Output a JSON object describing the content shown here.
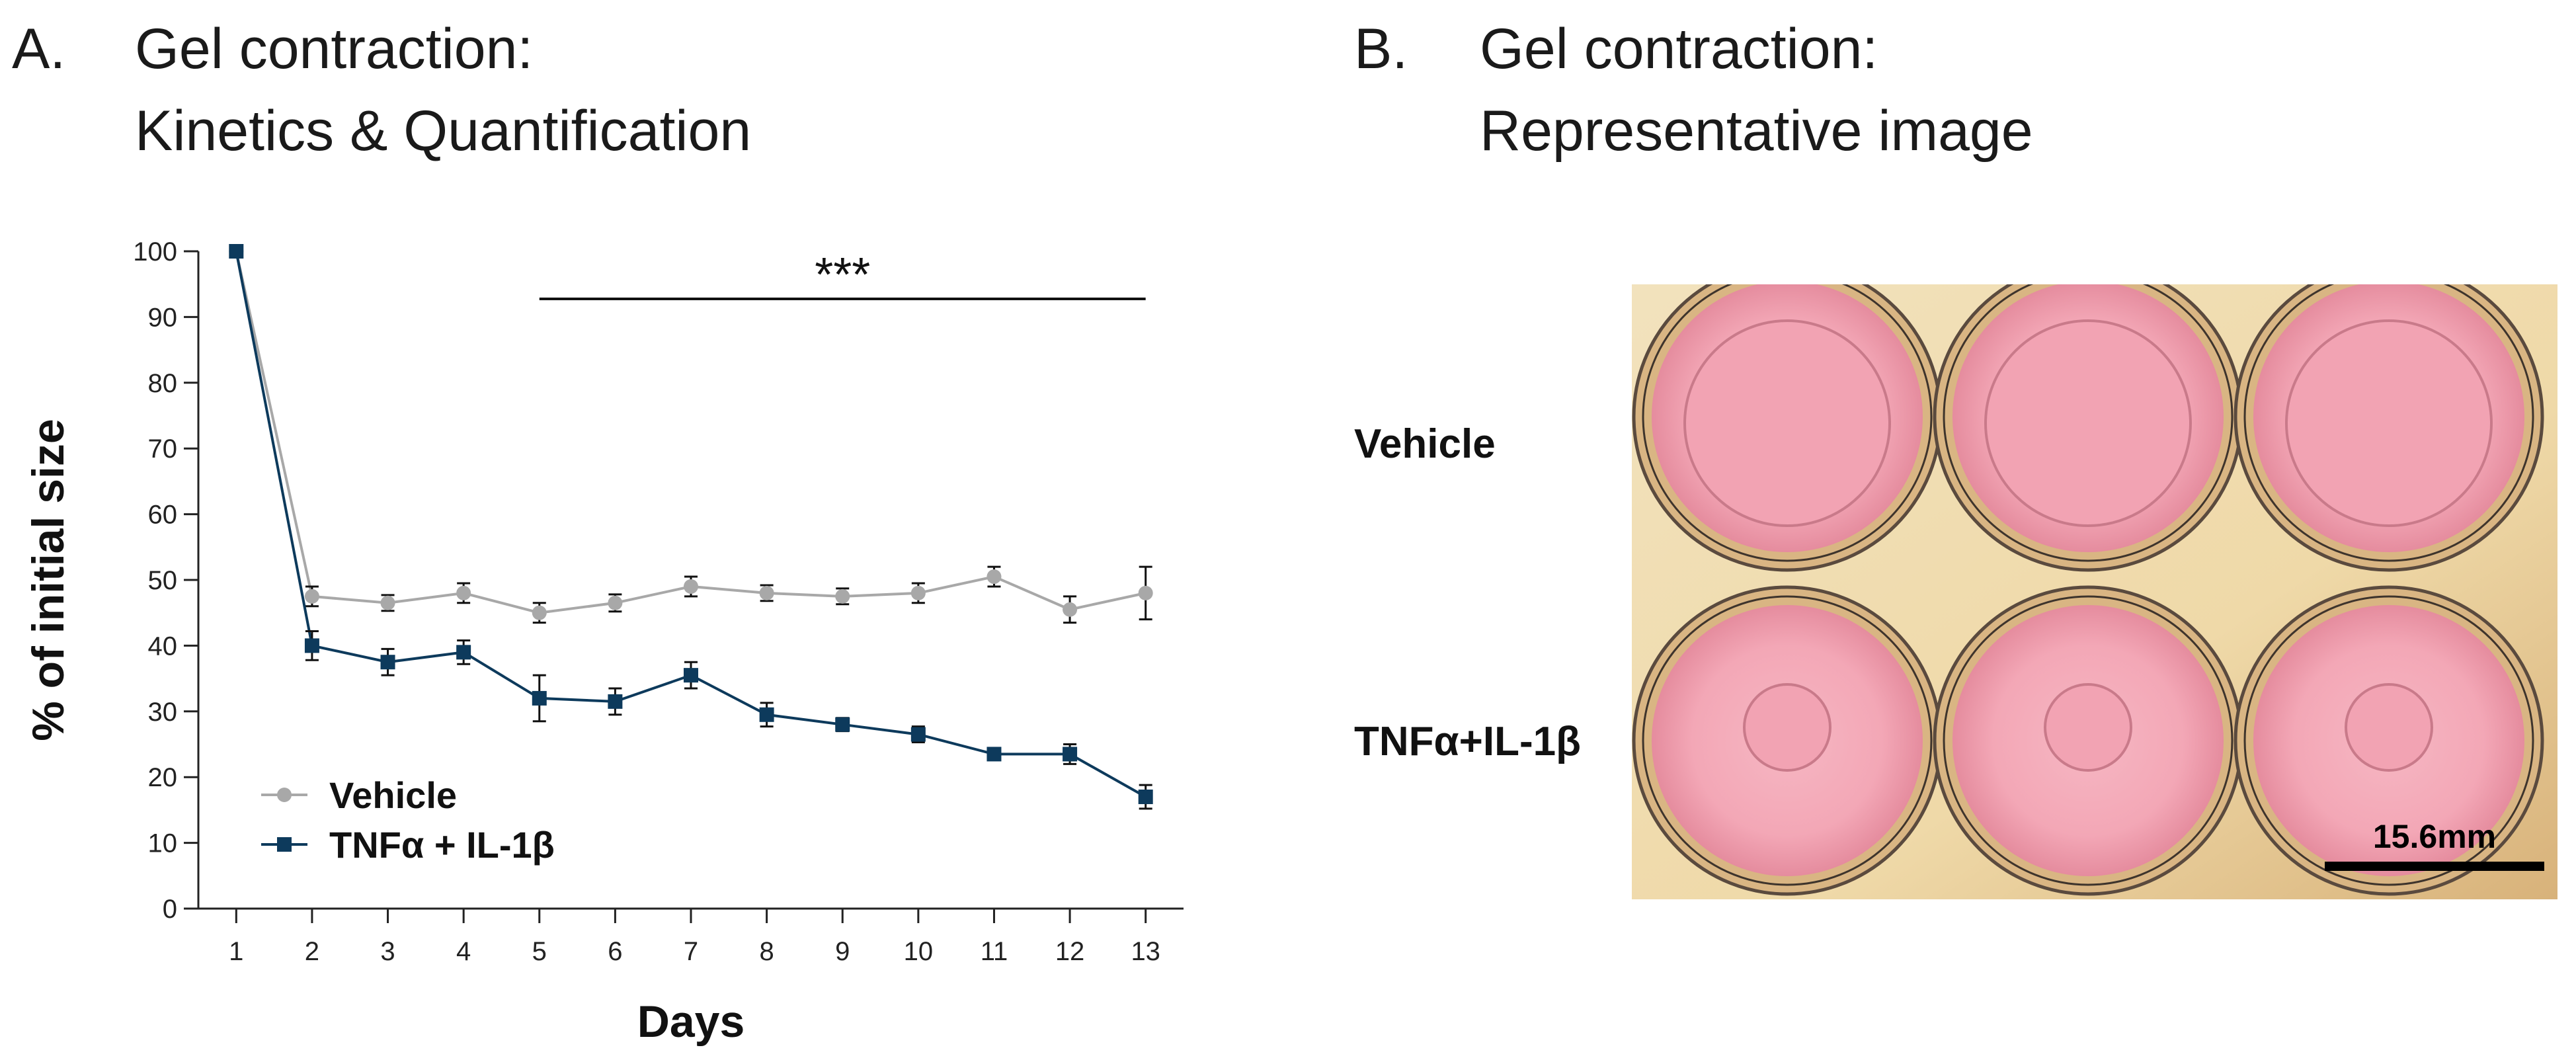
{
  "panel_a": {
    "letter": "A.",
    "title_line1": "Gel contraction:",
    "title_line2": "Kinetics & Quantification"
  },
  "panel_b": {
    "letter": "B.",
    "title_line1": "Gel contraction:",
    "title_line2": "Representative image",
    "row_labels": [
      "Vehicle",
      "TNFα+IL-1β"
    ],
    "scale_bar_label": "15.6mm",
    "colors": {
      "well_medium": "#f3a7b6",
      "well_medium_dark": "#e58c9e",
      "plate_background": "#efd9a8",
      "well_rim": "#5a4a3e"
    }
  },
  "chart_data": {
    "type": "line",
    "title": "",
    "xlabel": "Days",
    "ylabel": "% of initial size",
    "x": [
      1,
      2,
      3,
      4,
      5,
      6,
      7,
      8,
      9,
      10,
      11,
      12,
      13
    ],
    "xlim": [
      0.5,
      13.5
    ],
    "ylim": [
      0,
      100
    ],
    "y_ticks": [
      0,
      10,
      20,
      30,
      40,
      50,
      60,
      70,
      80,
      90,
      100
    ],
    "grid": false,
    "legend": "bottom-left",
    "series": [
      {
        "name": "Vehicle",
        "marker": "circle",
        "color": "#a8a8a8",
        "values": [
          100,
          47.5,
          46.5,
          48,
          45,
          46.5,
          49,
          48,
          47.5,
          48,
          50.5,
          45.5,
          48
        ],
        "errors": [
          0,
          1.5,
          1.2,
          1.5,
          1.5,
          1.3,
          1.5,
          1.2,
          1.2,
          1.5,
          1.5,
          2,
          4
        ]
      },
      {
        "name": "TNFα + IL-1β",
        "marker": "square",
        "color": "#0d3a5c",
        "values": [
          100,
          40,
          37.5,
          39,
          32,
          31.5,
          35.5,
          29.5,
          28,
          26.5,
          23.5,
          23.5,
          17
        ],
        "errors": [
          0,
          2.2,
          2,
          1.8,
          3.5,
          2,
          2,
          1.8,
          1,
          1.2,
          0.8,
          1.5,
          1.8
        ]
      }
    ],
    "annotation": {
      "text": "***",
      "from_x": 5,
      "to_x": 13
    }
  }
}
